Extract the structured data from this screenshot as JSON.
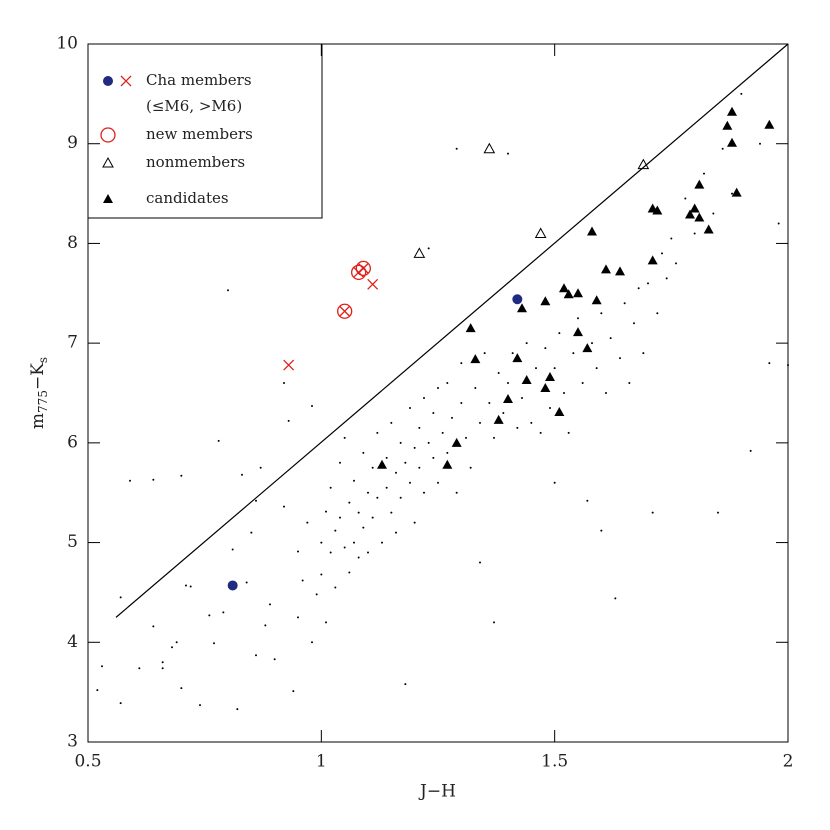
{
  "chart_data": {
    "type": "scatter",
    "xlabel": "J−H",
    "ylabel_parts": [
      "m",
      "775",
      "−K",
      "s"
    ],
    "xlim": [
      0.5,
      2
    ],
    "xticks": [
      0.5,
      1,
      1.5,
      2
    ],
    "ylim": [
      3,
      10
    ],
    "yticks": [
      3,
      4,
      5,
      6,
      7,
      8,
      9,
      10
    ],
    "legend_note": "(≤M6, >M6)",
    "lines": [
      {
        "color": "#000000",
        "x": [
          0.56,
          2.0
        ],
        "values": [
          4.25,
          10.0
        ]
      }
    ],
    "series": [
      {
        "name": "Cha members",
        "marker": "filled-circle",
        "color": "#1f2a80",
        "x": [
          0.81,
          1.42
        ],
        "values": [
          4.57,
          7.44
        ]
      },
      {
        "marker": "cross",
        "color": "#e0201b",
        "x": [
          0.93,
          1.11,
          1.05,
          1.08,
          1.09
        ],
        "values": [
          6.78,
          7.59,
          7.32,
          7.71,
          7.75
        ]
      },
      {
        "name": "new members",
        "marker": "open-circle",
        "color": "#e0201b",
        "x": [
          1.05,
          1.08,
          1.09
        ],
        "values": [
          7.32,
          7.71,
          7.75
        ]
      },
      {
        "name": "nonmembers",
        "marker": "open-triangle",
        "color": "#000000",
        "x": [
          1.21,
          1.36,
          1.47,
          1.69
        ],
        "values": [
          7.9,
          8.95,
          8.1,
          8.79
        ]
      },
      {
        "name": "candidates",
        "marker": "filled-triangle",
        "color": "#000000",
        "x": [
          1.88,
          1.87,
          1.96,
          1.88,
          1.89,
          1.81,
          1.79,
          1.8,
          1.81,
          1.83,
          1.71,
          1.72,
          1.58,
          1.71,
          1.61,
          1.64,
          1.52,
          1.53,
          1.55,
          1.59,
          1.48,
          1.43,
          1.32,
          1.33,
          1.42,
          1.55,
          1.57,
          1.49,
          1.44,
          1.48,
          1.4,
          1.38,
          1.51,
          1.29,
          1.27,
          1.13
        ],
        "values": [
          9.32,
          9.18,
          9.19,
          9.01,
          8.51,
          8.59,
          8.29,
          8.35,
          8.26,
          8.14,
          8.35,
          8.33,
          8.12,
          7.83,
          7.74,
          7.72,
          7.55,
          7.49,
          7.5,
          7.43,
          7.42,
          7.35,
          7.15,
          6.84,
          6.85,
          7.11,
          6.95,
          6.66,
          6.63,
          6.55,
          6.44,
          6.23,
          6.31,
          6.0,
          5.78,
          5.78
        ]
      },
      {
        "marker": "dot",
        "color": "#000000",
        "x": [
          0.52,
          0.53,
          0.57,
          0.57,
          0.59,
          0.61,
          0.64,
          0.64,
          0.66,
          0.66,
          0.68,
          0.69,
          0.7,
          0.7,
          0.71,
          0.72,
          0.74,
          0.76,
          0.77,
          0.78,
          0.79,
          0.8,
          0.81,
          0.82,
          0.83,
          0.84,
          0.85,
          0.86,
          0.86,
          0.87,
          0.88,
          0.89,
          0.9,
          0.92,
          0.92,
          0.93,
          0.94,
          0.95,
          0.95,
          0.96,
          0.97,
          0.98,
          0.98,
          0.99,
          1.0,
          1.0,
          1.01,
          1.01,
          1.02,
          1.02,
          1.03,
          1.03,
          1.04,
          1.04,
          1.05,
          1.05,
          1.06,
          1.06,
          1.07,
          1.07,
          1.08,
          1.08,
          1.09,
          1.09,
          1.1,
          1.1,
          1.11,
          1.11,
          1.12,
          1.12,
          1.13,
          1.14,
          1.14,
          1.15,
          1.15,
          1.16,
          1.16,
          1.17,
          1.17,
          1.18,
          1.18,
          1.19,
          1.19,
          1.2,
          1.2,
          1.21,
          1.21,
          1.22,
          1.22,
          1.23,
          1.23,
          1.24,
          1.24,
          1.25,
          1.25,
          1.26,
          1.27,
          1.27,
          1.28,
          1.29,
          1.29,
          1.3,
          1.3,
          1.31,
          1.32,
          1.33,
          1.34,
          1.34,
          1.35,
          1.36,
          1.37,
          1.37,
          1.38,
          1.39,
          1.4,
          1.4,
          1.41,
          1.42,
          1.43,
          1.44,
          1.45,
          1.46,
          1.47,
          1.48,
          1.49,
          1.5,
          1.5,
          1.51,
          1.52,
          1.53,
          1.54,
          1.55,
          1.56,
          1.57,
          1.58,
          1.59,
          1.6,
          1.6,
          1.61,
          1.62,
          1.63,
          1.64,
          1.65,
          1.66,
          1.67,
          1.68,
          1.69,
          1.7,
          1.71,
          1.72,
          1.73,
          1.74,
          1.75,
          1.76,
          1.78,
          1.8,
          1.82,
          1.84,
          1.85,
          1.86,
          1.88,
          1.9,
          1.92,
          1.94,
          1.96,
          1.98,
          2.0
        ],
        "values": [
          3.52,
          3.76,
          4.45,
          3.39,
          5.62,
          3.74,
          5.63,
          4.16,
          3.8,
          3.74,
          3.95,
          4.0,
          5.67,
          3.54,
          4.57,
          4.56,
          3.37,
          4.27,
          3.99,
          6.02,
          4.3,
          7.53,
          4.93,
          3.33,
          5.68,
          4.6,
          5.1,
          3.87,
          5.42,
          5.75,
          4.17,
          4.38,
          3.83,
          5.36,
          6.6,
          6.22,
          3.51,
          4.91,
          4.25,
          4.62,
          5.2,
          4.0,
          6.37,
          4.48,
          5.0,
          4.68,
          5.31,
          4.2,
          5.55,
          4.9,
          5.12,
          4.55,
          5.8,
          5.25,
          4.95,
          6.05,
          5.4,
          4.7,
          5.62,
          5.0,
          5.3,
          4.85,
          5.9,
          5.15,
          5.5,
          4.9,
          5.75,
          5.25,
          6.1,
          5.45,
          5.0,
          5.85,
          5.55,
          6.2,
          5.3,
          5.7,
          5.1,
          6.0,
          5.45,
          3.58,
          5.8,
          6.35,
          5.6,
          5.95,
          5.2,
          6.15,
          5.75,
          6.45,
          5.5,
          6.0,
          7.95,
          5.85,
          6.3,
          6.55,
          5.6,
          6.1,
          5.9,
          6.6,
          6.25,
          8.95,
          5.5,
          6.4,
          6.8,
          6.05,
          5.75,
          6.55,
          6.2,
          4.8,
          6.9,
          6.4,
          6.05,
          4.2,
          6.7,
          6.3,
          8.9,
          6.6,
          6.9,
          6.15,
          6.45,
          7.0,
          6.2,
          6.75,
          6.1,
          6.95,
          6.35,
          6.75,
          5.6,
          7.1,
          6.5,
          6.1,
          6.9,
          7.25,
          6.6,
          5.42,
          7.0,
          6.75,
          7.3,
          5.12,
          6.5,
          7.05,
          4.44,
          6.85,
          7.4,
          6.6,
          7.2,
          7.55,
          6.9,
          7.6,
          5.3,
          7.3,
          7.9,
          7.65,
          8.05,
          7.8,
          8.45,
          8.1,
          8.7,
          8.3,
          5.3,
          8.95,
          8.5,
          9.5,
          5.92,
          9.0,
          6.8,
          8.2,
          6.78
        ]
      }
    ]
  }
}
